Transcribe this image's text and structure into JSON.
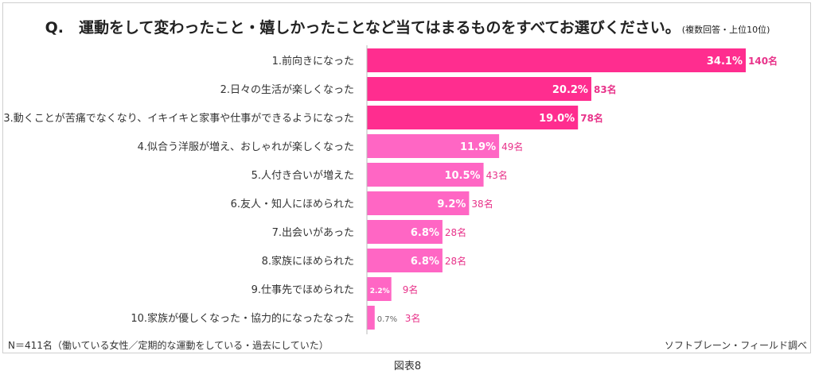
{
  "header": {
    "question": "Q.　運動をして変わったこと・嬉しかったことなど当てはまるものをすべてお選びください。",
    "note": "(複数回答・上位10位)"
  },
  "footer": {
    "sample": "N＝411名（働いている女性／定期的な運動をしている・過去にしていた）",
    "source": "ソフトブレーン・フィールド調べ",
    "figure": "図表8"
  },
  "colors": {
    "top": "#ff2d8f",
    "rest": "#ff66c4",
    "count": "#e8338a",
    "axis": "#bbbbbb"
  },
  "chart_data": {
    "type": "bar",
    "orientation": "horizontal",
    "categories": [
      "1.前向きになった",
      "2.日々の生活が楽しくなった",
      "3.動くことが苦痛でなくなり、イキイキと家事や仕事ができるようになった",
      "4.似合う洋服が増え、おしゃれが楽しくなった",
      "5.人付き合いが増えた",
      "6.友人・知人にほめられた",
      "7.出会いがあった",
      "8.家族にほめられた",
      "9.仕事先でほめられた",
      "10.家族が優しくなった・協力的になったなった"
    ],
    "values": [
      34.1,
      20.2,
      19.0,
      11.9,
      10.5,
      9.2,
      6.8,
      6.8,
      2.2,
      0.7
    ],
    "value_labels": [
      "34.1%",
      "20.2%",
      "19.0%",
      "11.9%",
      "10.5%",
      "9.2%",
      "6.8%",
      "6.8%",
      "2.2%",
      "0.7%"
    ],
    "counts": [
      "140名",
      "83名",
      "78名",
      "49名",
      "43名",
      "38名",
      "28名",
      "28名",
      "9名",
      "3名"
    ],
    "highlighted_top": 3,
    "xlim": [
      0,
      34.1
    ],
    "grid": false,
    "legend": "none"
  }
}
